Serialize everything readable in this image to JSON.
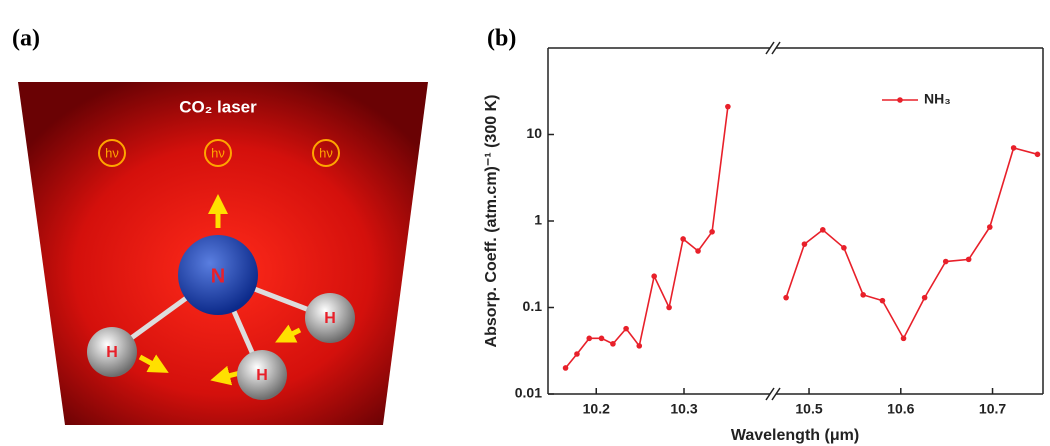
{
  "panel_a": {
    "label": "(a)",
    "title": "CO₂ laser",
    "photons": [
      "hν",
      "hν",
      "hν"
    ],
    "atoms": [
      "N",
      "H",
      "H",
      "H"
    ]
  },
  "chart_data": {
    "type": "line",
    "panel_label": "(b)",
    "x_label": "Wavelength (μm)",
    "y_label": "Absorp. Coeff. (atm.cm)⁻¹ (300 K)",
    "xlim": [
      10.145,
      10.755
    ],
    "xbreak": [
      10.398,
      10.464
    ],
    "xticks": [
      10.2,
      10.3,
      10.5,
      10.6,
      10.7
    ],
    "ylim": [
      0.01,
      100
    ],
    "yticks": [
      0.01,
      0.1,
      1,
      10
    ],
    "y_log": true,
    "legend": "upper right",
    "series": [
      {
        "name": "NH₃",
        "color": "#e8202a",
        "x": [
          10.165,
          10.178,
          10.192,
          10.206,
          10.219,
          10.234,
          10.249,
          10.266,
          10.283,
          10.299,
          10.316,
          10.332,
          10.35,
          10.475,
          10.495,
          10.515,
          10.538,
          10.559,
          10.58,
          10.603,
          10.626,
          10.649,
          10.674,
          10.697,
          10.723,
          10.749
        ],
        "values": [
          0.02,
          0.029,
          0.044,
          0.044,
          0.038,
          0.057,
          0.036,
          0.23,
          0.1,
          0.62,
          0.45,
          0.75,
          21,
          0.13,
          0.54,
          0.79,
          0.49,
          0.14,
          0.12,
          0.044,
          0.13,
          0.34,
          0.36,
          0.85,
          7,
          5.9
        ]
      }
    ]
  }
}
